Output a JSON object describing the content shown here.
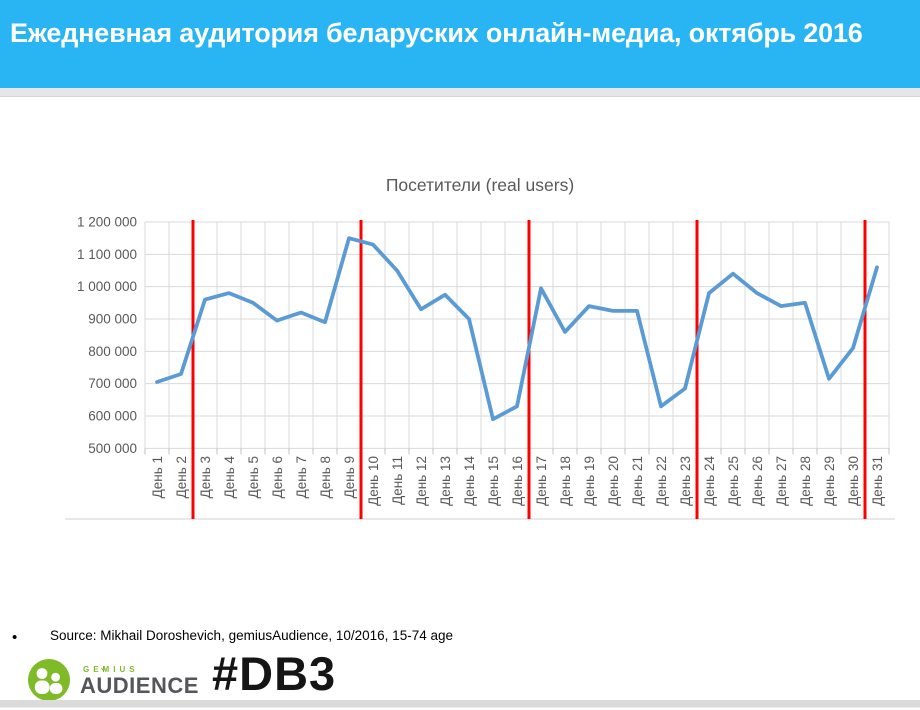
{
  "header": {
    "title": "Ежедневная аудитория беларуских онлайн-медиа, октябрь 2016",
    "bg_color": "#29B5F3",
    "text_color": "#FFFFFF"
  },
  "chart_data": {
    "type": "line",
    "title": "Посетители (real users)",
    "categories": [
      "День 1",
      "День 2",
      "День 3",
      "День 4",
      "День 5",
      "День 6",
      "День 7",
      "День 8",
      "День 9",
      "День 10",
      "День 11",
      "День 12",
      "День 13",
      "День 14",
      "День 15",
      "День 16",
      "День 17",
      "День 18",
      "День 19",
      "День 20",
      "День 21",
      "День 22",
      "День 23",
      "День 24",
      "День 25",
      "День 26",
      "День 27",
      "День 28",
      "День 29",
      "День 30",
      "День 31"
    ],
    "values": [
      705000,
      730000,
      960000,
      980000,
      950000,
      895000,
      920000,
      890000,
      1150000,
      1130000,
      1050000,
      930000,
      975000,
      900000,
      590000,
      630000,
      995000,
      860000,
      940000,
      925000,
      925000,
      630000,
      685000,
      980000,
      1040000,
      980000,
      940000,
      950000,
      715000,
      810000,
      1060000
    ],
    "ylim": [
      500000,
      1200000
    ],
    "ytick_step": 100000,
    "ytick_labels": [
      "1 200 000",
      "1 100 000",
      "1 000 000",
      "900 000",
      "800 000",
      "700 000",
      "600 000",
      "500 000"
    ],
    "week_divider_after_days": [
      2,
      9,
      16,
      23,
      30
    ],
    "grid": true,
    "legend": "none",
    "line_color": "#5B9BD5",
    "divider_color": "#FF0000",
    "grid_color": "#D9D9D9",
    "axis_text_color": "#595959",
    "title_color": "#595959"
  },
  "footer": {
    "bullet": "•",
    "source_text": "Source: Mikhail Doroshevich, gemiusAudience,  10/2016, 15-74 age",
    "hashtag": "#DB3",
    "logo": {
      "brand_top": "GEMIUS",
      "brand_bottom": "AUDIENCE",
      "breve": "ˇ",
      "green": "#7FBA28",
      "dark": "#54565A"
    }
  }
}
